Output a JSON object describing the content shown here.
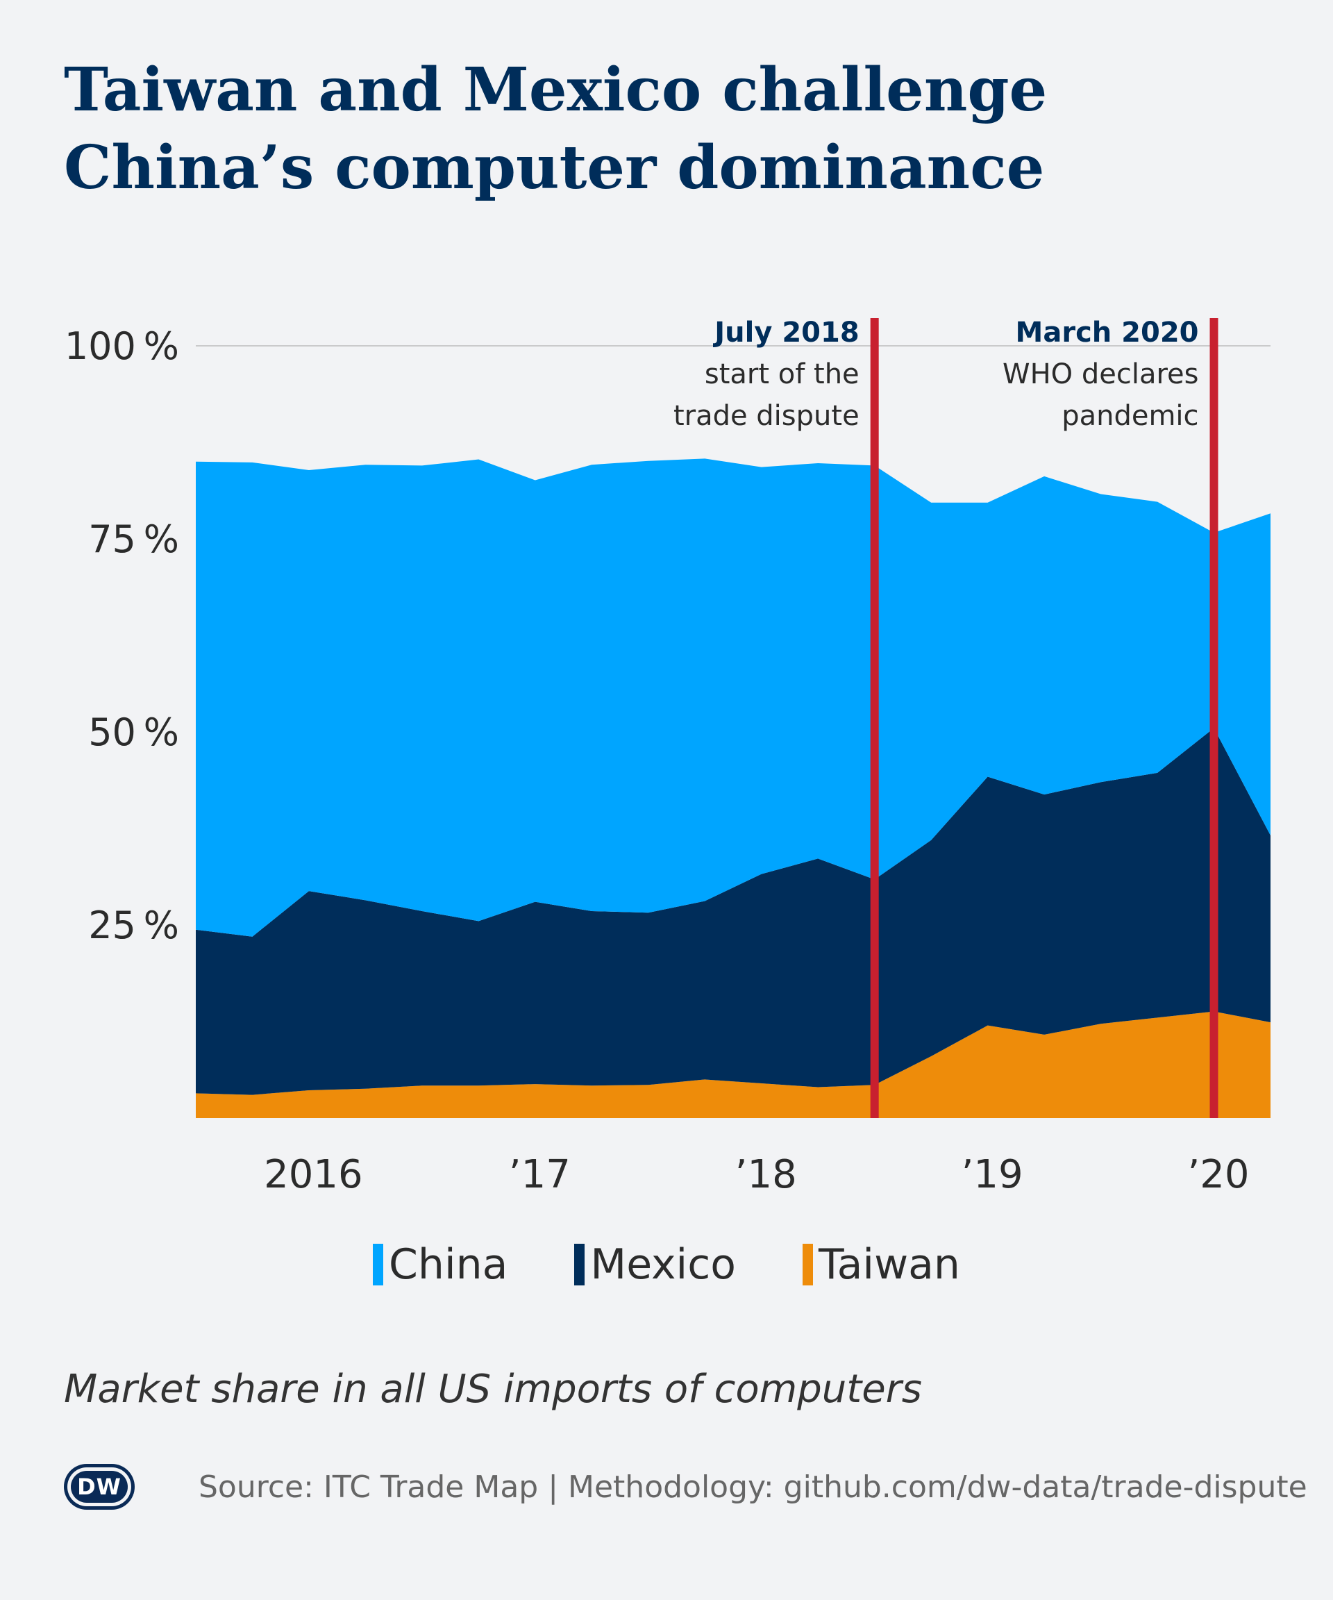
{
  "title": [
    "Taiwan and Mexico challenge",
    "China’s computer dominance"
  ],
  "subtitle": "Market share in all US imports of computers",
  "source": "Source: ITC Trade Map | Methodology: github.com/dw-data/trade-dispute",
  "logo_text": "DW",
  "colors": {
    "china": "#00a5ff",
    "mexico": "#002d5a",
    "taiwan": "#ee8c0a",
    "marker": "#c8202f",
    "grid": "#bdbdbd"
  },
  "chart_data": {
    "type": "area",
    "stacked": true,
    "title": "Taiwan and Mexico challenge China’s computer dominance",
    "ylim": [
      0,
      100
    ],
    "xlim": [
      2015.75,
      2020.5
    ],
    "x": [
      2015.75,
      2016.0,
      2016.25,
      2016.5,
      2016.75,
      2017.0,
      2017.25,
      2017.5,
      2017.75,
      2018.0,
      2018.25,
      2018.5,
      2018.75,
      2019.0,
      2019.25,
      2019.5,
      2019.75,
      2020.0,
      2020.25,
      2020.5
    ],
    "series": [
      {
        "name": "Taiwan",
        "values": [
          3.2,
          3.0,
          3.6,
          3.8,
          4.2,
          4.2,
          4.4,
          4.2,
          4.3,
          5.0,
          4.5,
          4.0,
          4.3,
          8.0,
          12.0,
          10.8,
          12.2,
          13.0,
          13.8,
          12.4
        ]
      },
      {
        "name": "Mexico",
        "values": [
          21.2,
          20.5,
          25.8,
          24.4,
          22.6,
          21.3,
          23.6,
          22.6,
          22.3,
          23.1,
          27.1,
          29.6,
          26.6,
          28.0,
          32.2,
          31.1,
          31.3,
          31.7,
          36.7,
          24.2
        ]
      },
      {
        "name": "China",
        "values": [
          60.6,
          61.4,
          54.5,
          56.4,
          57.7,
          59.8,
          54.6,
          57.8,
          58.5,
          57.3,
          52.7,
          51.2,
          53.6,
          43.7,
          35.5,
          41.2,
          37.3,
          35.1,
          25.3,
          41.7
        ]
      }
    ],
    "yticks": [
      {
        "v": 0,
        "label": ""
      },
      {
        "v": 25,
        "label": "25 %"
      },
      {
        "v": 50,
        "label": "50 %"
      },
      {
        "v": 75,
        "label": "75 %"
      },
      {
        "v": 100,
        "label": "100 %"
      }
    ],
    "xticks": [
      {
        "v": 2016.5,
        "label": "2016"
      },
      {
        "v": 2017.5,
        "label": "’17"
      },
      {
        "v": 2018.5,
        "label": "’18"
      },
      {
        "v": 2019.5,
        "label": "’19"
      },
      {
        "v": 2020.5,
        "label": "’20"
      }
    ],
    "annotations": [
      {
        "x": 2018.75,
        "date": "July 2018",
        "text": [
          "start of the",
          "trade dispute"
        ]
      },
      {
        "x": 2020.25,
        "date": "March 2020",
        "text": [
          "WHO declares",
          "pandemic"
        ]
      }
    ],
    "legend": {
      "position": "bottom",
      "items": [
        "China",
        "Mexico",
        "Taiwan"
      ]
    }
  }
}
